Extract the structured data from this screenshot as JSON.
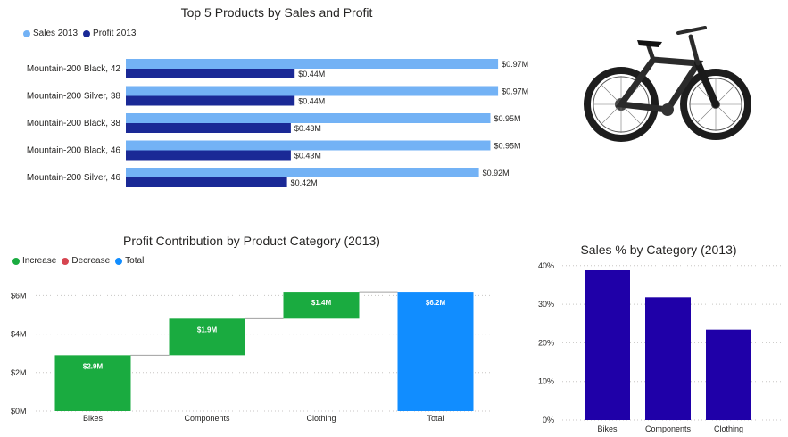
{
  "colors": {
    "sales": "#73b2f5",
    "profit": "#1a2996",
    "increase": "#1aab40",
    "decrease": "#d64550",
    "total": "#118dff",
    "category_bar": "#1f00a8",
    "grid": "#c8c6c4",
    "text": "#252423"
  },
  "chart_data": [
    {
      "type": "bar",
      "orientation": "horizontal",
      "title": "Top 5 Products by Sales and Profit",
      "categories": [
        "Mountain-200 Black, 42",
        "Mountain-200 Silver, 38",
        "Mountain-200 Black, 38",
        "Mountain-200 Black, 46",
        "Mountain-200 Silver, 46"
      ],
      "series": [
        {
          "name": "Sales 2013",
          "values": [
            0.97,
            0.97,
            0.95,
            0.95,
            0.92
          ],
          "labels": [
            "$0.97M",
            "$0.97M",
            "$0.95M",
            "$0.95M",
            "$0.92M"
          ]
        },
        {
          "name": "Profit 2013",
          "values": [
            0.44,
            0.44,
            0.43,
            0.43,
            0.42
          ],
          "labels": [
            "$0.44M",
            "$0.44M",
            "$0.43M",
            "$0.43M",
            "$0.42M"
          ]
        }
      ],
      "legend_position": "top-left"
    },
    {
      "type": "waterfall",
      "title": "Profit Contribution by Product Category (2013)",
      "legend": [
        "Increase",
        "Decrease",
        "Total"
      ],
      "categories": [
        "Bikes",
        "Components",
        "Clothing",
        "Total"
      ],
      "values": [
        2.9,
        1.9,
        1.4,
        6.2
      ],
      "kinds": [
        "increase",
        "increase",
        "increase",
        "total"
      ],
      "labels": [
        "$2.9M",
        "$1.9M",
        "$1.4M",
        "$6.2M"
      ],
      "yticks": [
        "$0M",
        "$2M",
        "$4M",
        "$6M"
      ],
      "ylim": [
        0,
        6.8
      ],
      "grid": true,
      "legend_position": "top-left"
    },
    {
      "type": "bar",
      "title": "Sales % by Category (2013)",
      "categories": [
        "Bikes",
        "Components",
        "Clothing"
      ],
      "values": [
        38.8,
        31.8,
        23.4
      ],
      "yticks": [
        "0%",
        "10%",
        "20%",
        "30%",
        "40%"
      ],
      "ylim": [
        0,
        40
      ],
      "grid": true
    }
  ],
  "image": {
    "subject": "mountain-bike-photo"
  }
}
